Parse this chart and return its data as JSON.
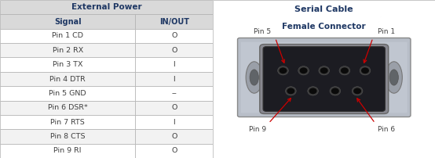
{
  "title_left": "External Power",
  "col_headers": [
    "Signal",
    "IN/OUT"
  ],
  "rows": [
    [
      "Pin 1 CD",
      "O"
    ],
    [
      "Pin 2 RX",
      "O"
    ],
    [
      "Pin 3 TX",
      "I"
    ],
    [
      "Pin 4 DTR",
      "I"
    ],
    [
      "Pin 5 GND",
      "--"
    ],
    [
      "Pin 6 DSR*",
      "O"
    ],
    [
      "Pin 7 RTS",
      "I"
    ],
    [
      "Pin 8 CTS",
      "O"
    ],
    [
      "Pin 9 RI",
      "O"
    ]
  ],
  "title_right": "Serial Cable",
  "subtitle_right": "Female Connector",
  "header_bg": "#d9d9d9",
  "title_bg": "#d9d9d9",
  "row_bg_alt": "#f2f2f2",
  "row_bg_main": "#ffffff",
  "header_color": "#1f3864",
  "title_color": "#1f3864",
  "text_color": "#404040",
  "border_color": "#b0b0b0",
  "arrow_color": "#cc0000",
  "panel_bg": "#ffffff"
}
